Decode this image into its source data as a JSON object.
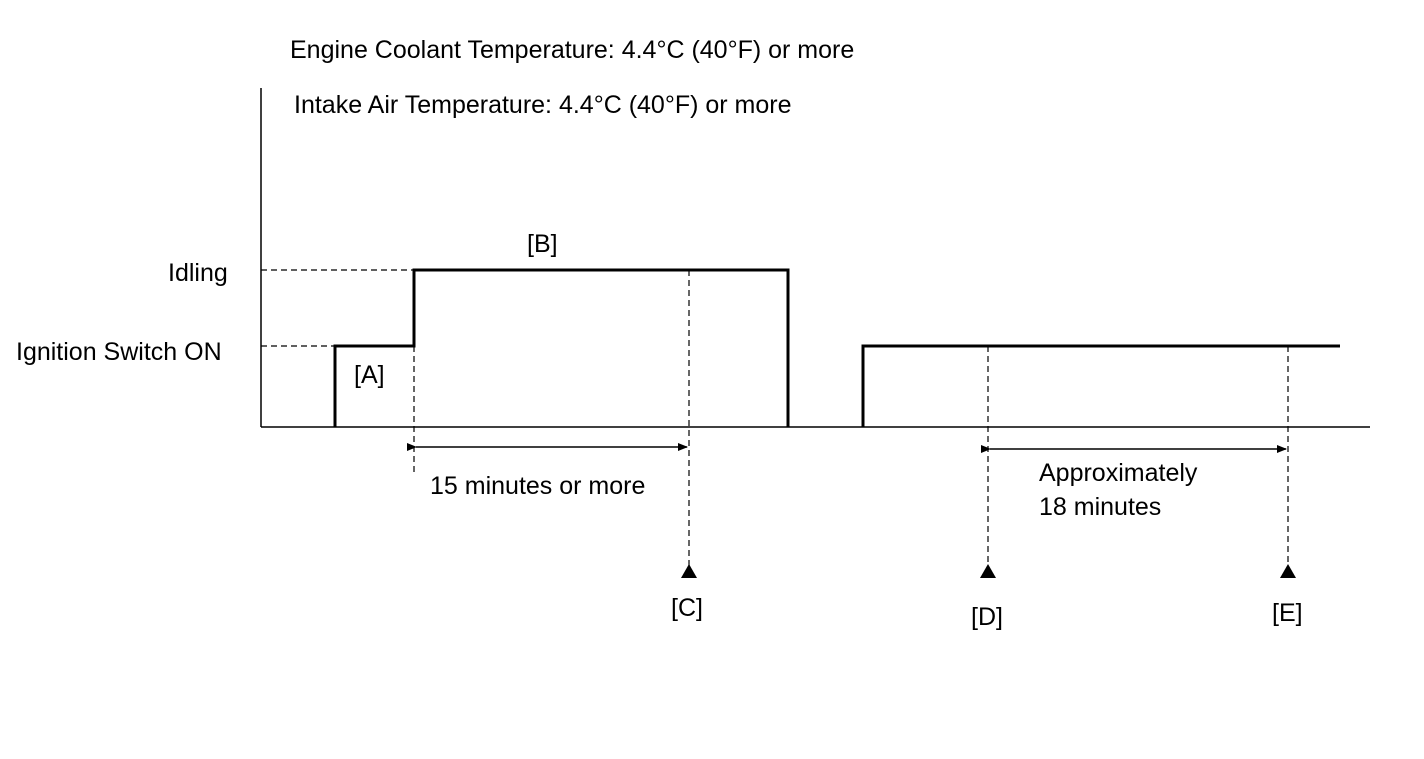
{
  "conditions": {
    "coolant": "Engine Coolant Temperature: 4.4°C (40°F) or more",
    "intake_air": "Intake Air Temperature: 4.4°C (40°F) or more"
  },
  "levels": {
    "idling": "Idling",
    "ignition_on": "Ignition Switch ON"
  },
  "steps": {
    "a": "[A]",
    "b": "[B]",
    "c": "[C]",
    "d": "[D]",
    "e": "[E]"
  },
  "durations": {
    "first": "15 minutes or more",
    "second_line1": "Approximately",
    "second_line2": "18 minutes"
  }
}
